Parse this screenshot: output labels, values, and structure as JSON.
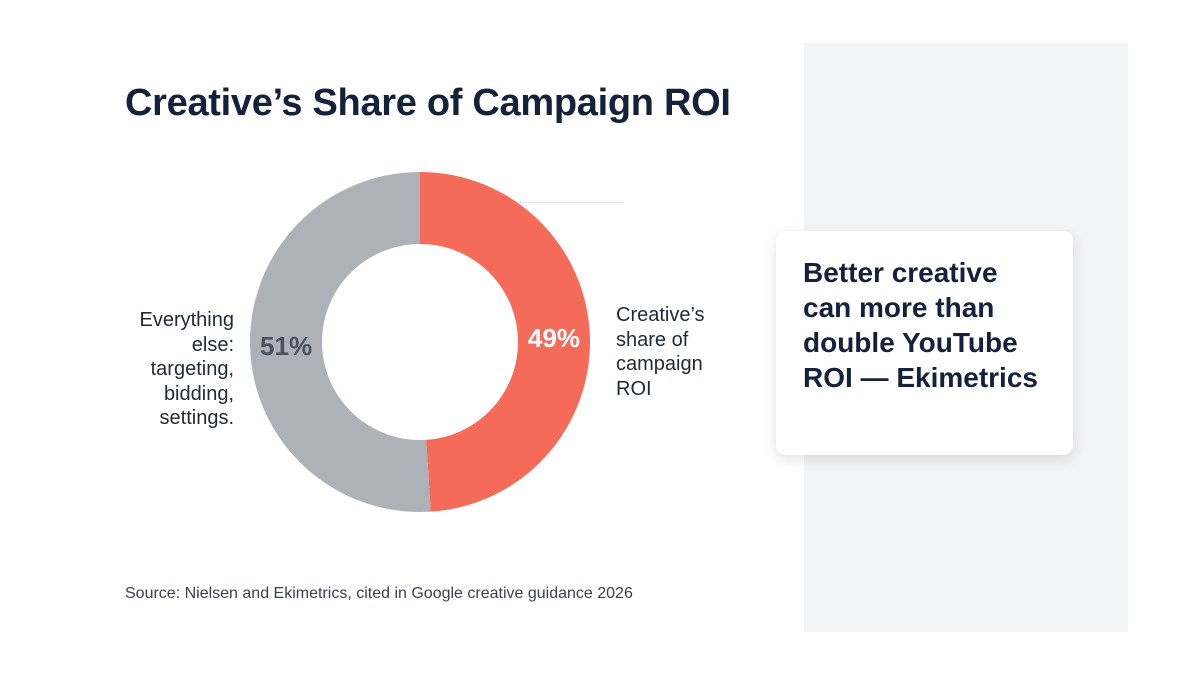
{
  "title": "Creative’s Share of Campaign ROI",
  "chart_data": {
    "type": "pie",
    "donut": true,
    "title": "Creative’s Share of Campaign ROI",
    "slices": [
      {
        "name": "Creative’s share of campaign ROI",
        "value": 49,
        "label": "49%",
        "color": "#f56b5a",
        "label_color": "#ffffff"
      },
      {
        "name": "Everything else: targeting, bidding, settings.",
        "value": 51,
        "label": "51%",
        "color": "#adb1b8",
        "label_color": "#4a5160"
      }
    ],
    "legend_left": "Everything else: targeting, bidding, settings.",
    "legend_right": "Creative’s share of campaign ROI"
  },
  "callout": {
    "text": "Better creative can more than double YouTube ROI — Ekimetrics"
  },
  "source": "Source: Nielsen and Ekimetrics, cited in Google creative guidance 2026"
}
